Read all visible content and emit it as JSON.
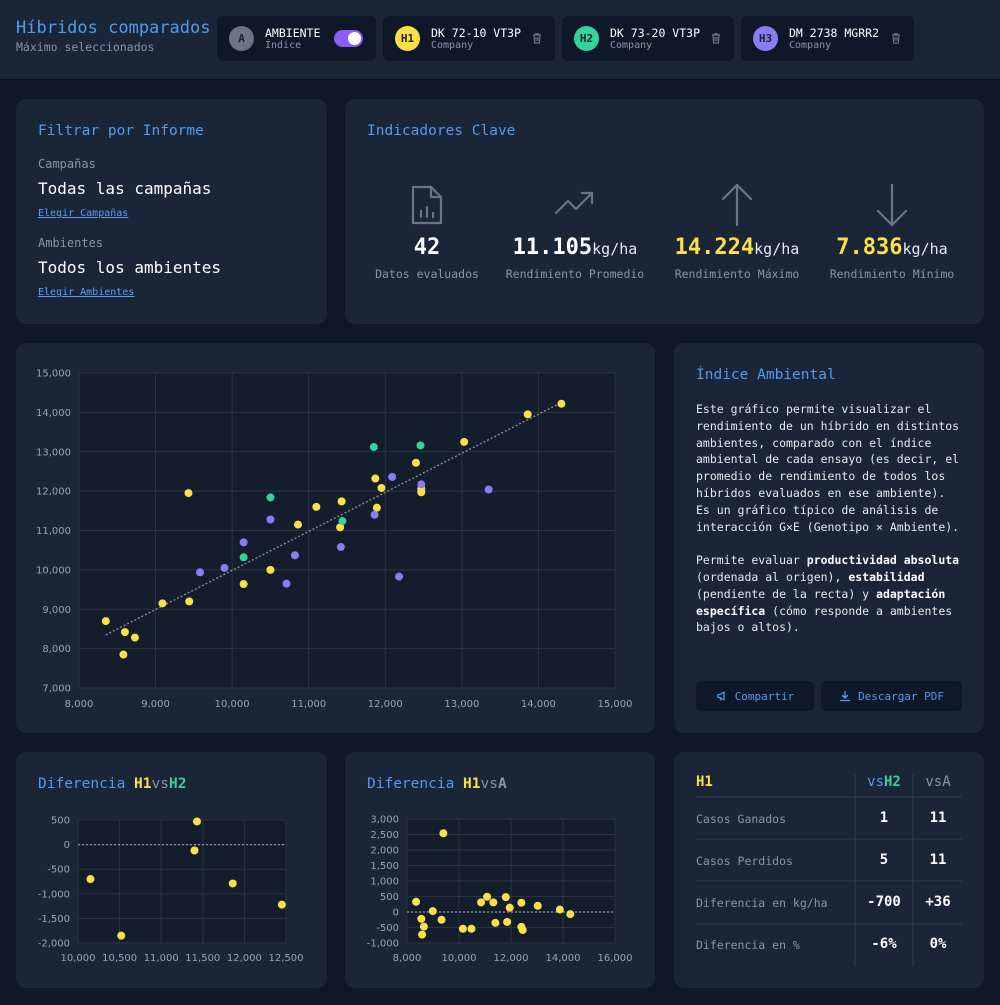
{
  "header": {
    "title": "Híbridos comparados",
    "subtitle": "Máximo seleccionados",
    "chips": [
      {
        "badge": "A",
        "name": "AMBIENTE",
        "sub": "Índice",
        "color": "#6b7585",
        "toggle": true
      },
      {
        "badge": "H1",
        "name": "DK 72-10 VT3P",
        "sub": "Company",
        "color": "#fde047",
        "icon": "trash-icon"
      },
      {
        "badge": "H2",
        "name": "DK 73-20 VT3P",
        "sub": "Company",
        "color": "#34d399",
        "icon": "trash-icon"
      },
      {
        "badge": "H3",
        "name": "DM 2738 MGRR2",
        "sub": "Company",
        "color": "#8b7cf6",
        "icon": "trash-icon"
      }
    ]
  },
  "filter": {
    "title": "Filtrar por Informe",
    "campaigns_label": "Campañas",
    "campaigns_value": "Todas las campañas",
    "campaigns_link": "Elegir Campañas",
    "envs_label": "Ambientes",
    "envs_value": "Todos los ambientes",
    "envs_link": "Elegir Ambientes"
  },
  "kpis": {
    "title": "Indicadores Clave",
    "items": [
      {
        "icon": "file-chart-icon",
        "value": "42",
        "unit": "",
        "label": "Datos evaluados",
        "color": "#ffffff"
      },
      {
        "icon": "trending-up-icon",
        "value": "11.105",
        "unit": "kg/ha",
        "label": "Rendimiento Promedio",
        "color": "#ffffff"
      },
      {
        "icon": "arrow-up-icon",
        "value": "14.224",
        "unit": "kg/ha",
        "label": "Rendimiento Máximo",
        "color": "#fde047"
      },
      {
        "icon": "arrow-down-icon",
        "value": "7.836",
        "unit": "kg/ha",
        "label": "Rendimiento Mínimo",
        "color": "#fde047"
      }
    ]
  },
  "info": {
    "title": "Índice Ambiental",
    "p1": "Este gráfico permite visualizar el rendimiento de un híbrido en distintos ambientes, comparado con el índice ambiental de cada ensayo (es decir, el promedio de rendimiento de todos los híbridos evaluados en ese ambiente). Es un gráfico típico de análisis de interacción G×E (Genotipo × Ambiente).",
    "p2_a": "Permite evaluar ",
    "p2_b": "productividad absoluta",
    "p2_c": " (ordenada al origen), ",
    "p2_d": "estabilidad",
    "p2_e": " (pendiente de la recta) y ",
    "p2_f": "adaptación específica",
    "p2_g": " (cómo responde a ambientes bajos o altos).",
    "share": "Compartir",
    "download": "Descargar PDF"
  },
  "diff1": {
    "title_a": "Diferencia ",
    "title_b": "H1",
    "title_c": "vs",
    "title_d": "H2"
  },
  "diff2": {
    "title_a": "Diferencia ",
    "title_b": "H1",
    "title_c": "vs",
    "title_d": "A"
  },
  "table": {
    "h1": "H1",
    "col1_a": "vs",
    "col1_b": "H2",
    "col2": "vsA",
    "rows": [
      {
        "label": "Casos Ganados",
        "v1": "1",
        "v2": "11"
      },
      {
        "label": "Casos Perdidos",
        "v1": "5",
        "v2": "11"
      },
      {
        "label": "Diferencia en kg/ha",
        "v1": "-700",
        "v2": "+36"
      },
      {
        "label": "Diferencia en %",
        "v1": "-6%",
        "v2": "0%"
      }
    ]
  },
  "colors": {
    "h1": "#fde047",
    "h2": "#34d399",
    "h3": "#8b7cf6",
    "accent": "#4f9cf0"
  },
  "chart_data": [
    {
      "type": "scatter",
      "xlim": [
        8000,
        15000
      ],
      "ylim": [
        7000,
        15000
      ],
      "xticks": [
        "8,000",
        "9,000",
        "10,000",
        "11,000",
        "12,000",
        "13,000",
        "14,000",
        "15,000"
      ],
      "yticks": [
        "7,000",
        "8,000",
        "9,000",
        "10,000",
        "11,000",
        "12,000",
        "13,000",
        "14,000",
        "15,000"
      ],
      "trend": [
        [
          8350,
          8350
        ],
        [
          14300,
          14250
        ]
      ],
      "series": [
        {
          "color": "#fde047",
          "points": [
            [
              8350,
              8700
            ],
            [
              8580,
              7850
            ],
            [
              8600,
              8420
            ],
            [
              8730,
              8280
            ],
            [
              9090,
              9150
            ],
            [
              9430,
              11950
            ],
            [
              9440,
              9200
            ],
            [
              10150,
              9640
            ],
            [
              10500,
              10000
            ],
            [
              10860,
              11150
            ],
            [
              11100,
              11600
            ],
            [
              11410,
              11080
            ],
            [
              11430,
              11740
            ],
            [
              11870,
              12320
            ],
            [
              11890,
              11580
            ],
            [
              11950,
              12080
            ],
            [
              12400,
              12720
            ],
            [
              12470,
              11970
            ],
            [
              12470,
              12060
            ],
            [
              13030,
              13250
            ],
            [
              13860,
              13950
            ],
            [
              14300,
              14220
            ]
          ]
        },
        {
          "color": "#34d399",
          "points": [
            [
              10150,
              10320
            ],
            [
              10500,
              11840
            ],
            [
              11440,
              11240
            ],
            [
              11850,
              13120
            ],
            [
              12460,
              13160
            ]
          ]
        },
        {
          "color": "#8b7cf6",
          "points": [
            [
              9580,
              9940
            ],
            [
              9900,
              10050
            ],
            [
              10150,
              10700
            ],
            [
              10500,
              11280
            ],
            [
              10710,
              9650
            ],
            [
              10820,
              10370
            ],
            [
              11420,
              10580
            ],
            [
              11860,
              11400
            ],
            [
              12090,
              12360
            ],
            [
              12180,
              9830
            ],
            [
              12470,
              12170
            ],
            [
              13350,
              12040
            ]
          ]
        }
      ]
    },
    {
      "type": "scatter",
      "xlim": [
        10000,
        12500
      ],
      "ylim": [
        -2000,
        500
      ],
      "xticks": [
        "10,000",
        "10,500",
        "11,000",
        "11,500",
        "12,000",
        "12,500"
      ],
      "yticks": [
        "-2,000",
        "-1,500",
        "-1,000",
        "-500",
        "0",
        "500"
      ],
      "series": [
        {
          "color": "#fde047",
          "points": [
            [
              10150,
              -700
            ],
            [
              10520,
              -1850
            ],
            [
              11400,
              -120
            ],
            [
              11430,
              470
            ],
            [
              11860,
              -790
            ],
            [
              12450,
              -1220
            ]
          ]
        }
      ]
    },
    {
      "type": "scatter",
      "xlim": [
        8000,
        16000
      ],
      "ylim": [
        -1000,
        3000
      ],
      "xticks": [
        "8,000",
        "10,000",
        "12,000",
        "14,000",
        "16,000"
      ],
      "yticks": [
        "-1,000",
        "-500",
        "0",
        "500",
        "1,000",
        "1,500",
        "2,000",
        "2,500",
        "3,000"
      ],
      "series": [
        {
          "color": "#fde047",
          "points": [
            [
              9400,
              2540
            ],
            [
              8350,
              330
            ],
            [
              8550,
              -220
            ],
            [
              8580,
              -730
            ],
            [
              8650,
              -470
            ],
            [
              8990,
              30
            ],
            [
              9330,
              -250
            ],
            [
              10150,
              -540
            ],
            [
              10480,
              -540
            ],
            [
              10850,
              310
            ],
            [
              11080,
              490
            ],
            [
              11320,
              310
            ],
            [
              11400,
              -350
            ],
            [
              11800,
              480
            ],
            [
              11850,
              -320
            ],
            [
              11950,
              140
            ],
            [
              12400,
              300
            ],
            [
              12400,
              -480
            ],
            [
              12450,
              -580
            ],
            [
              13030,
              200
            ],
            [
              13880,
              80
            ],
            [
              14280,
              -70
            ]
          ]
        }
      ]
    }
  ]
}
